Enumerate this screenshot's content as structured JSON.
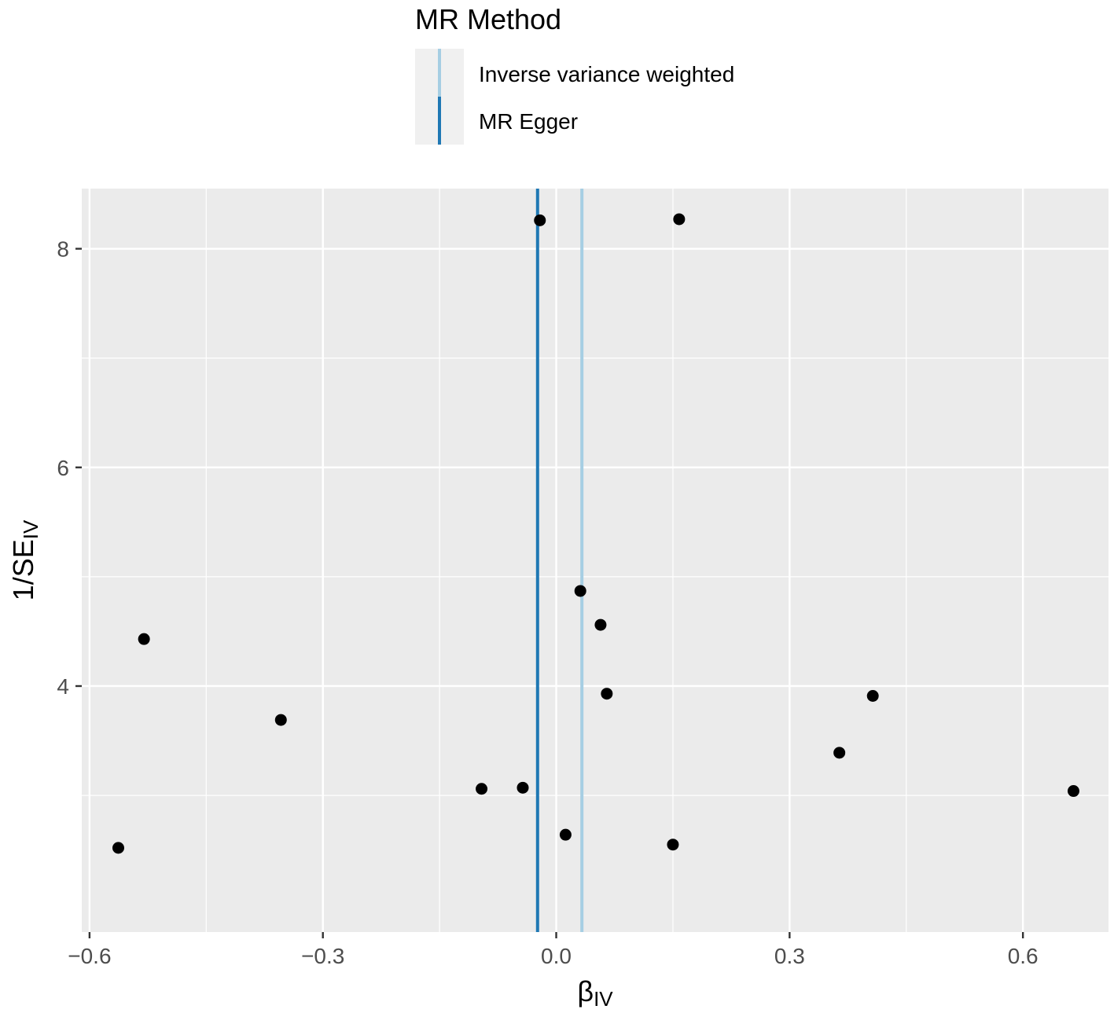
{
  "chart_data": {
    "type": "scatter",
    "title": "",
    "xlabel_main": "β",
    "xlabel_sub": "IV",
    "ylabel_main": "1/SE",
    "ylabel_sub": "IV",
    "xlim": [
      -0.61,
      0.71
    ],
    "ylim": [
      1.75,
      8.55
    ],
    "x_ticks": [
      -0.6,
      -0.3,
      0.0,
      0.3,
      0.6
    ],
    "x_tick_labels": [
      "-0.6",
      "-0.3",
      "0.0",
      "0.3",
      "0.6"
    ],
    "y_ticks": [
      4,
      6,
      8
    ],
    "y_tick_labels": [
      "4",
      "6",
      "8"
    ],
    "grid": true,
    "points": [
      {
        "x": -0.563,
        "y": 2.52
      },
      {
        "x": -0.53,
        "y": 4.43
      },
      {
        "x": -0.354,
        "y": 3.69
      },
      {
        "x": -0.096,
        "y": 3.06
      },
      {
        "x": -0.043,
        "y": 3.07
      },
      {
        "x": -0.021,
        "y": 8.26
      },
      {
        "x": 0.012,
        "y": 2.64
      },
      {
        "x": 0.031,
        "y": 4.87
      },
      {
        "x": 0.057,
        "y": 4.56
      },
      {
        "x": 0.065,
        "y": 3.93
      },
      {
        "x": 0.15,
        "y": 2.55
      },
      {
        "x": 0.158,
        "y": 8.27
      },
      {
        "x": 0.364,
        "y": 3.39
      },
      {
        "x": 0.407,
        "y": 3.91
      },
      {
        "x": 0.665,
        "y": 3.04
      }
    ],
    "reference_lines": [
      {
        "name": "Inverse variance weighted",
        "x": 0.033,
        "color": "#a6cee3"
      },
      {
        "name": "MR Egger",
        "x": -0.024,
        "color": "#1f78b4"
      }
    ],
    "legend": {
      "title": "MR Method",
      "position": "top",
      "entries": [
        {
          "label": "Inverse variance weighted",
          "color": "#a6cee3"
        },
        {
          "label": "MR Egger",
          "color": "#1f78b4"
        }
      ]
    },
    "colors": {
      "panel_background": "#ebebeb",
      "grid_line": "#ffffff",
      "point": "#000000",
      "tick_text": "#4d4d4d"
    }
  }
}
